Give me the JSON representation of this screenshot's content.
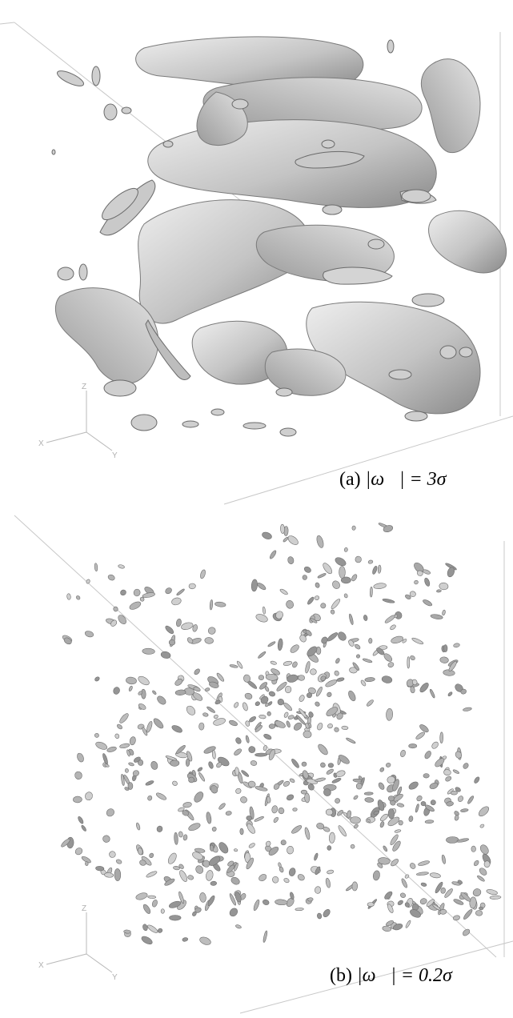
{
  "figure": {
    "panels": [
      {
        "id": "a",
        "caption_label": "(a)",
        "caption_math": "|ω⃗| = 3σ",
        "isosurface": "large sheet-like vortex structures"
      },
      {
        "id": "b",
        "caption_label": "(b)",
        "caption_math": "|ω⃗| = 0.2σ",
        "isosurface": "many small scattered vortex blobs"
      }
    ],
    "axis_triad_labels": [
      "Z",
      "X",
      "Y"
    ],
    "colors": {
      "background": "#ffffff",
      "surface_light": "#e6e6e6",
      "surface_mid": "#bdbdbd",
      "surface_dark": "#6e6e6e",
      "box_edge": "#c8c8c8"
    }
  }
}
